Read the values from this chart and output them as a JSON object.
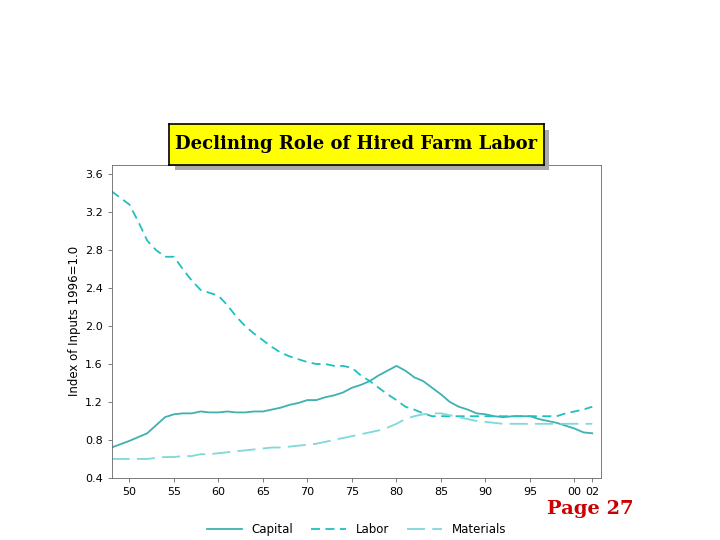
{
  "title": "Declining Role of Hired Farm Labor",
  "ylabel": "Index of Inputs 1996=1.0",
  "page_text": "Page 27",
  "x_ticks": [
    50,
    55,
    60,
    65,
    70,
    75,
    80,
    85,
    90,
    95,
    100,
    102
  ],
  "x_tick_labels": [
    "50",
    "55",
    "60",
    "65",
    "70",
    "75",
    "80",
    "85",
    "90",
    "95",
    "00",
    "02"
  ],
  "ylim": [
    0.4,
    3.7
  ],
  "y_ticks": [
    0.4,
    0.8,
    1.2,
    1.6,
    2.0,
    2.4,
    2.8,
    3.2,
    3.6
  ],
  "color_capital": "#40b0b0",
  "color_labor": "#20c0c0",
  "color_materials": "#80d8d8",
  "bg_color": "#ffffff",
  "title_bg": "#ffff00",
  "title_shadow": "#aaaaaa",
  "page_color": "#cc0000",
  "capital": {
    "x": [
      48,
      50,
      52,
      54,
      55,
      56,
      57,
      58,
      59,
      60,
      61,
      62,
      63,
      64,
      65,
      66,
      67,
      68,
      69,
      70,
      71,
      72,
      73,
      74,
      75,
      76,
      77,
      78,
      79,
      80,
      81,
      82,
      83,
      84,
      85,
      86,
      87,
      88,
      89,
      90,
      91,
      92,
      93,
      94,
      95,
      96,
      97,
      98,
      99,
      100,
      101,
      102
    ],
    "y": [
      0.72,
      0.79,
      0.87,
      1.04,
      1.07,
      1.08,
      1.08,
      1.1,
      1.09,
      1.09,
      1.1,
      1.09,
      1.09,
      1.1,
      1.1,
      1.12,
      1.14,
      1.17,
      1.19,
      1.22,
      1.22,
      1.25,
      1.27,
      1.3,
      1.35,
      1.38,
      1.42,
      1.48,
      1.53,
      1.58,
      1.53,
      1.46,
      1.42,
      1.35,
      1.28,
      1.2,
      1.15,
      1.12,
      1.08,
      1.07,
      1.05,
      1.04,
      1.05,
      1.05,
      1.05,
      1.02,
      1.0,
      0.98,
      0.95,
      0.92,
      0.88,
      0.87
    ]
  },
  "labor": {
    "x": [
      48,
      50,
      51,
      52,
      53,
      54,
      55,
      56,
      57,
      58,
      59,
      60,
      61,
      62,
      63,
      64,
      65,
      66,
      67,
      68,
      69,
      70,
      71,
      72,
      73,
      74,
      75,
      76,
      77,
      78,
      79,
      80,
      81,
      82,
      83,
      84,
      85,
      86,
      87,
      88,
      89,
      90,
      91,
      92,
      93,
      94,
      95,
      96,
      97,
      98,
      99,
      100,
      101,
      102
    ],
    "y": [
      3.42,
      3.28,
      3.1,
      2.9,
      2.8,
      2.73,
      2.73,
      2.6,
      2.48,
      2.38,
      2.35,
      2.32,
      2.22,
      2.1,
      2.0,
      1.92,
      1.85,
      1.78,
      1.72,
      1.68,
      1.65,
      1.62,
      1.6,
      1.6,
      1.58,
      1.58,
      1.56,
      1.48,
      1.42,
      1.35,
      1.28,
      1.22,
      1.15,
      1.12,
      1.08,
      1.05,
      1.05,
      1.05,
      1.05,
      1.05,
      1.05,
      1.05,
      1.05,
      1.05,
      1.05,
      1.05,
      1.05,
      1.05,
      1.05,
      1.05,
      1.08,
      1.1,
      1.12,
      1.15
    ]
  },
  "materials": {
    "x": [
      48,
      50,
      52,
      54,
      55,
      56,
      57,
      58,
      59,
      60,
      61,
      62,
      63,
      64,
      65,
      66,
      67,
      68,
      69,
      70,
      71,
      72,
      73,
      74,
      75,
      76,
      77,
      78,
      79,
      80,
      81,
      82,
      83,
      84,
      85,
      86,
      87,
      88,
      89,
      90,
      91,
      92,
      93,
      94,
      95,
      96,
      97,
      98,
      99,
      100,
      101,
      102
    ],
    "y": [
      0.6,
      0.6,
      0.6,
      0.62,
      0.62,
      0.63,
      0.63,
      0.65,
      0.65,
      0.66,
      0.67,
      0.68,
      0.69,
      0.7,
      0.71,
      0.72,
      0.72,
      0.73,
      0.74,
      0.75,
      0.76,
      0.78,
      0.8,
      0.82,
      0.84,
      0.86,
      0.88,
      0.9,
      0.93,
      0.97,
      1.02,
      1.05,
      1.07,
      1.08,
      1.08,
      1.06,
      1.04,
      1.02,
      1.0,
      0.99,
      0.98,
      0.97,
      0.97,
      0.97,
      0.97,
      0.97,
      0.97,
      0.97,
      0.97,
      0.97,
      0.97,
      0.97
    ]
  }
}
